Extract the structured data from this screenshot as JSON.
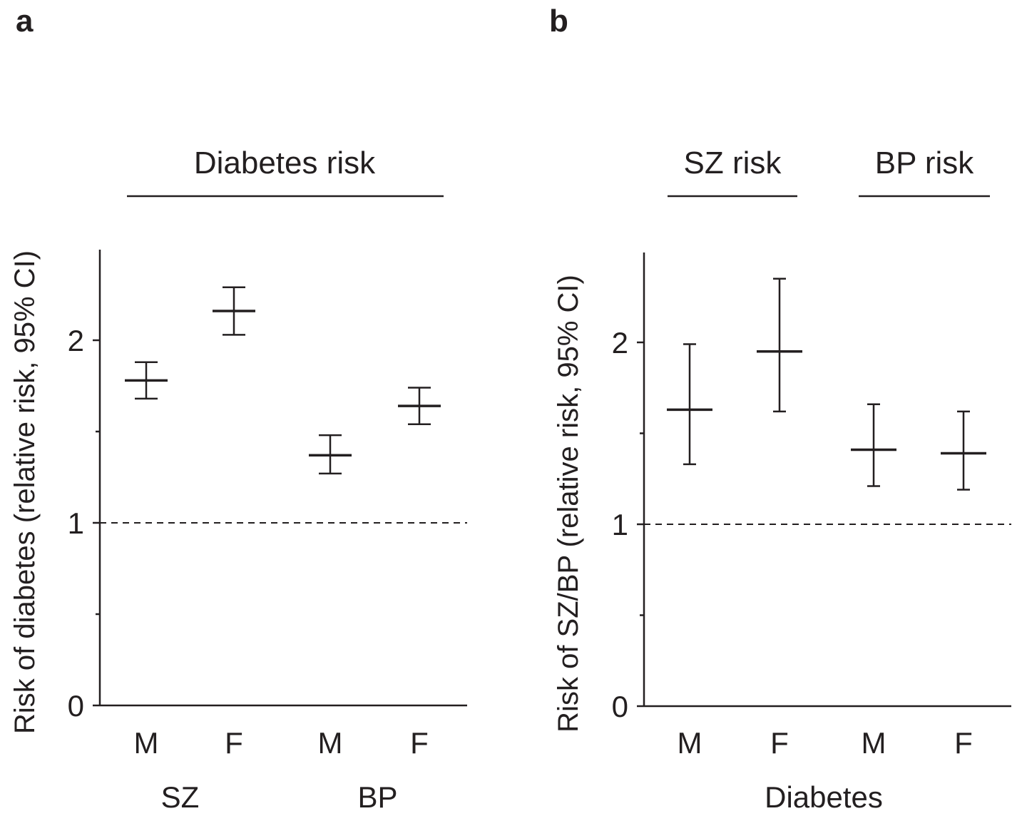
{
  "chart_data": [
    {
      "type": "errorbar",
      "panel_label": "a",
      "title": "Diabetes risk",
      "ylabel": "Risk of diabetes (relative risk, 95% CI)",
      "xlabel": "",
      "ylim": [
        0,
        2.5
      ],
      "yticks": [
        0,
        1,
        2
      ],
      "ytick_labels": [
        "0",
        "1",
        "2"
      ],
      "yminor_ticks": [
        0.5,
        1.5
      ],
      "reference_line": 1,
      "categories": [
        "M",
        "F",
        "M",
        "F"
      ],
      "groups": [
        {
          "label": "SZ",
          "categories": [
            0,
            1
          ]
        },
        {
          "label": "BP",
          "categories": [
            2,
            3
          ]
        }
      ],
      "values": [
        1.78,
        2.16,
        1.37,
        1.64
      ],
      "ci_lower": [
        1.68,
        2.03,
        1.27,
        1.54
      ],
      "ci_upper": [
        1.88,
        2.29,
        1.48,
        1.74
      ]
    },
    {
      "type": "errorbar",
      "panel_label": "b",
      "ylabel": "Risk of SZ/BP (relative risk, 95% CI)",
      "xlabel": "Diabetes",
      "ylim": [
        0,
        2.5
      ],
      "yticks": [
        0,
        1,
        2
      ],
      "ytick_labels": [
        "0",
        "1",
        "2"
      ],
      "yminor_ticks": [
        0.5,
        1.5
      ],
      "reference_line": 1,
      "categories": [
        "M",
        "F",
        "M",
        "F"
      ],
      "top_groups": [
        {
          "label": "SZ risk",
          "categories": [
            0,
            1
          ]
        },
        {
          "label": "BP risk",
          "categories": [
            2,
            3
          ]
        }
      ],
      "values": [
        1.63,
        1.95,
        1.41,
        1.39
      ],
      "ci_lower": [
        1.33,
        1.62,
        1.21,
        1.19
      ],
      "ci_upper": [
        1.99,
        2.35,
        1.66,
        1.62
      ]
    }
  ]
}
